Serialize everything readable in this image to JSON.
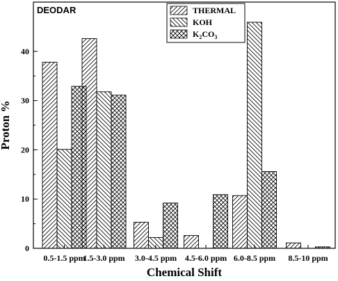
{
  "chart_data": {
    "type": "bar",
    "title": "DEODAR",
    "xlabel": "Chemical Shift",
    "ylabel": "Proton %",
    "ylim": [
      0,
      50
    ],
    "yticks": [
      0,
      10,
      20,
      30,
      40
    ],
    "grid": false,
    "legend_position": "top-center",
    "categories": [
      "0.5-1.5 ppm",
      "1.5-3.0 ppm",
      "3.0-4.5 ppm",
      "4.5-6.0 ppm",
      "6.0-8.5 ppm",
      "8.5-10 ppm"
    ],
    "series": [
      {
        "name": "THERMAL",
        "pattern": "forward-hatch",
        "values": [
          37.8,
          42.6,
          5.3,
          2.6,
          10.7,
          1.1
        ]
      },
      {
        "name": "KOH",
        "pattern": "back-hatch",
        "values": [
          20.1,
          31.8,
          2.2,
          0,
          45.9,
          0
        ]
      },
      {
        "name": "K2CO3",
        "legend_parts": {
          "base": "K",
          "sub1": "2",
          "mid": "CO",
          "sub2": "3"
        },
        "pattern": "crosshatch",
        "values": [
          32.9,
          31.1,
          9.2,
          10.9,
          15.6,
          0.3
        ]
      }
    ],
    "colors": {
      "ink": "#000000",
      "fill": "#ffffff"
    }
  }
}
